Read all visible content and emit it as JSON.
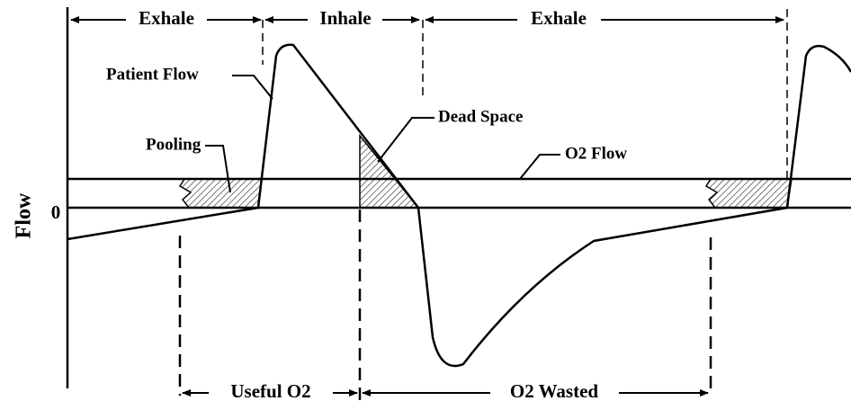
{
  "phases": [
    "Exhale",
    "Inhale",
    "Exhale"
  ],
  "labels": {
    "patient_flow": "Patient Flow",
    "dead_space": "Dead Space",
    "pooling": "Pooling",
    "o2_flow": "O2 Flow",
    "axis": "Flow",
    "zero": "0"
  },
  "bottom": [
    "Useful O2",
    "O2 Wasted"
  ]
}
